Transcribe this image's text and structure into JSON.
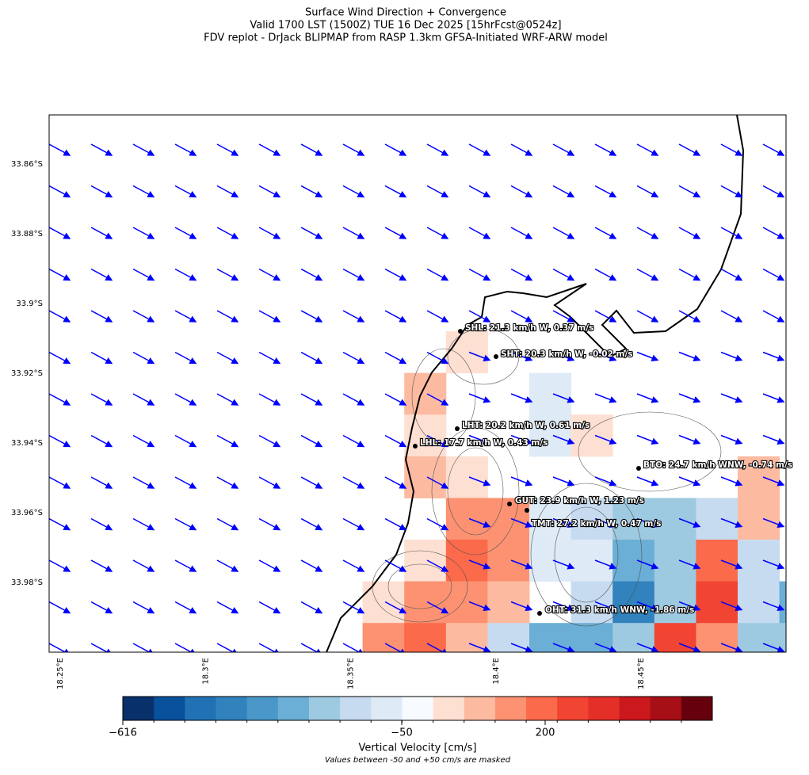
{
  "header": {
    "title_lines": [
      "Surface Wind Direction + Convergence",
      "Valid 1700 LST (1500Z) TUE 16 Dec 2025 [15hrFcst@0524z]",
      "FDV replot - DrJack BLIPMAP from RASP 1.3km GFSA-Initiated WRF-ARW model"
    ]
  },
  "map": {
    "lat_ticks": [
      "33.86°S",
      "33.88°S",
      "33.9°S",
      "33.92°S",
      "33.94°S",
      "33.96°S",
      "33.98°S"
    ],
    "lon_ticks": [
      "18.25°E",
      "18.3°E",
      "18.35°E",
      "18.4°E",
      "18.45°E"
    ],
    "stations": [
      "SHL: 21.3 km/h W, 0.37 m/s",
      "SHT: 20.3 km/h W, -0.02 m/s",
      "LHT: 20.2 km/h W, 0.61 m/s",
      "LHL: 17.7 km/h W, 0.43 m/s",
      "BTO: 24.7 km/h WNW, -0.74 m/s",
      "GUT: 23.9 km/h W, 1.23 m/s",
      "TMT: 27.2 km/h W, 0.47 m/s",
      "OHT: 31.3 km/h WNW, -1.86 m/s"
    ]
  },
  "colorbar": {
    "tick_labels": [
      "−616",
      "−50",
      "200"
    ],
    "label": "Vertical Velocity [cm/s]",
    "note": "Values between -50 and +50 cm/s are masked"
  }
}
